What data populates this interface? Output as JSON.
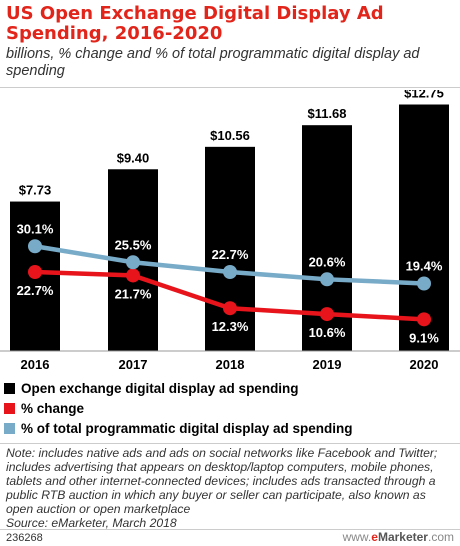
{
  "title": "US Open Exchange Digital Display Ad Spending, 2016-2020",
  "subtitle": "billions, % change and % of total programmatic digital display ad spending",
  "chart_data": {
    "type": "bar",
    "categories": [
      "2016",
      "2017",
      "2018",
      "2019",
      "2020"
    ],
    "series": [
      {
        "name": "Open exchange digital display ad spending",
        "type": "bar",
        "color": "#000000",
        "values": [
          7.73,
          9.4,
          10.56,
          11.68,
          12.75
        ],
        "labels": [
          "$7.73",
          "$9.40",
          "$10.56",
          "$11.68",
          "$12.75"
        ]
      },
      {
        "name": "% change",
        "type": "line",
        "color": "#e8141b",
        "values": [
          22.7,
          21.7,
          12.3,
          10.6,
          9.1
        ],
        "labels": [
          "22.7%",
          "21.7%",
          "12.3%",
          "10.6%",
          "9.1%"
        ]
      },
      {
        "name": "% of total programmatic digital display ad spending",
        "type": "line",
        "color": "#78abc8",
        "values": [
          30.1,
          25.5,
          22.7,
          20.6,
          19.4
        ],
        "labels": [
          "30.1%",
          "25.5%",
          "22.7%",
          "20.6%",
          "19.4%"
        ]
      }
    ],
    "bar_ylim": [
      0,
      13.5
    ],
    "line_ylim": [
      0,
      75
    ],
    "legend_position": "bottom-left",
    "grid": false
  },
  "note": "Note: includes native ads and ads on social networks like Facebook and Twitter; includes advertising that appears on desktop/laptop computers, mobile phones, tablets and other internet-connected devices; includes ads transacted through a public RTB auction in which any buyer or seller can participate, also known as open auction or open marketplace",
  "source": "Source: eMarketer, March 2018",
  "footer": {
    "id": "236268",
    "logo_prefix": "www.",
    "logo_e": "e",
    "logo_brand": "Marketer",
    "logo_suffix": ".com"
  }
}
